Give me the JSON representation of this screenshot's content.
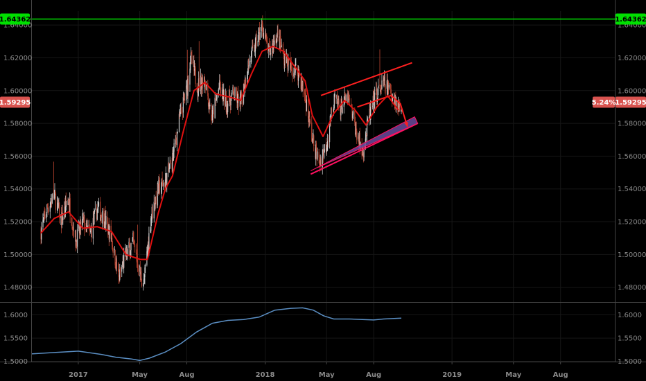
{
  "chart_data": [
    {
      "type": "candlestick",
      "panel": "price",
      "y_ticks": [
        "1.48000",
        "1.50000",
        "1.52000",
        "1.54000",
        "1.56000",
        "1.58000",
        "1.60000",
        "1.62000",
        "1.64000"
      ],
      "ylim": [
        1.471,
        1.6485
      ],
      "xlim": [
        "2016-10-01",
        "2019-11-15"
      ],
      "resistance_level": {
        "value": 1.64362,
        "label": "1.64362",
        "color": "#00e000"
      },
      "last_price": {
        "value": 1.59295,
        "label": "1.59295",
        "change_label": "5.24%",
        "color": "#d9534f"
      },
      "price_path": [
        [
          "2016-10-20",
          1.515
        ],
        [
          "2016-11-01",
          1.528
        ],
        [
          "2016-11-15",
          1.536
        ],
        [
          "2016-11-29",
          1.521
        ],
        [
          "2016-12-13",
          1.534
        ],
        [
          "2016-12-27",
          1.508
        ],
        [
          "2017-01-10",
          1.52
        ],
        [
          "2017-01-24",
          1.512
        ],
        [
          "2017-02-07",
          1.528
        ],
        [
          "2017-02-21",
          1.522
        ],
        [
          "2017-03-07",
          1.51
        ],
        [
          "2017-03-21",
          1.485
        ],
        [
          "2017-04-04",
          1.5
        ],
        [
          "2017-04-18",
          1.508
        ],
        [
          "2017-05-02",
          1.488
        ],
        [
          "2017-05-09",
          1.482
        ],
        [
          "2017-05-23",
          1.523
        ],
        [
          "2017-06-06",
          1.54
        ],
        [
          "2017-06-20",
          1.545
        ],
        [
          "2017-07-04",
          1.558
        ],
        [
          "2017-07-18",
          1.583
        ],
        [
          "2017-08-01",
          1.6
        ],
        [
          "2017-08-08",
          1.62
        ],
        [
          "2017-08-22",
          1.603
        ],
        [
          "2017-09-05",
          1.608
        ],
        [
          "2017-09-19",
          1.583
        ],
        [
          "2017-10-03",
          1.602
        ],
        [
          "2017-10-17",
          1.592
        ],
        [
          "2017-10-31",
          1.598
        ],
        [
          "2017-11-14",
          1.592
        ],
        [
          "2017-11-28",
          1.615
        ],
        [
          "2017-12-12",
          1.627
        ],
        [
          "2017-12-26",
          1.639
        ],
        [
          "2018-01-09",
          1.622
        ],
        [
          "2018-01-23",
          1.634
        ],
        [
          "2018-02-06",
          1.622
        ],
        [
          "2018-02-20",
          1.613
        ],
        [
          "2018-03-06",
          1.612
        ],
        [
          "2018-03-20",
          1.597
        ],
        [
          "2018-04-03",
          1.57
        ],
        [
          "2018-04-17",
          1.556
        ],
        [
          "2018-05-01",
          1.568
        ],
        [
          "2018-05-15",
          1.594
        ],
        [
          "2018-05-29",
          1.59
        ],
        [
          "2018-06-12",
          1.595
        ],
        [
          "2018-06-26",
          1.578
        ],
        [
          "2018-07-10",
          1.562
        ],
        [
          "2018-07-24",
          1.585
        ],
        [
          "2018-08-07",
          1.598
        ],
        [
          "2018-08-21",
          1.604
        ],
        [
          "2018-09-04",
          1.599
        ],
        [
          "2018-09-18",
          1.59
        ],
        [
          "2018-09-24",
          1.593
        ]
      ],
      "moving_average": {
        "color": "#e01010",
        "points": [
          [
            "2016-10-20",
            1.513
          ],
          [
            "2016-11-15",
            1.522
          ],
          [
            "2016-12-13",
            1.526
          ],
          [
            "2017-01-10",
            1.516
          ],
          [
            "2017-02-07",
            1.517
          ],
          [
            "2017-03-07",
            1.514
          ],
          [
            "2017-04-04",
            1.5
          ],
          [
            "2017-05-02",
            1.497
          ],
          [
            "2017-05-16",
            1.497
          ],
          [
            "2017-06-06",
            1.525
          ],
          [
            "2017-06-20",
            1.54
          ],
          [
            "2017-07-04",
            1.548
          ],
          [
            "2017-07-25",
            1.575
          ],
          [
            "2017-08-15",
            1.6
          ],
          [
            "2017-09-05",
            1.605
          ],
          [
            "2017-09-26",
            1.598
          ],
          [
            "2017-10-24",
            1.596
          ],
          [
            "2017-11-14",
            1.594
          ],
          [
            "2017-12-05",
            1.61
          ],
          [
            "2017-12-26",
            1.624
          ],
          [
            "2018-01-16",
            1.627
          ],
          [
            "2018-02-06",
            1.624
          ],
          [
            "2018-02-27",
            1.615
          ],
          [
            "2018-03-20",
            1.606
          ],
          [
            "2018-04-03",
            1.585
          ],
          [
            "2018-04-24",
            1.572
          ],
          [
            "2018-05-15",
            1.586
          ],
          [
            "2018-06-05",
            1.594
          ],
          [
            "2018-06-26",
            1.588
          ],
          [
            "2018-07-17",
            1.579
          ],
          [
            "2018-08-07",
            1.59
          ],
          [
            "2018-08-28",
            1.597
          ],
          [
            "2018-09-18",
            1.588
          ]
        ]
      },
      "annotations": [
        {
          "kind": "trendline",
          "color": "#ff2020",
          "from": [
            "2018-04-20",
            1.597
          ],
          "to": [
            "2018-10-15",
            1.617
          ]
        },
        {
          "kind": "trendline",
          "color": "#ff1060",
          "from": [
            "2018-03-31",
            1.549
          ],
          "to": [
            "2018-10-26",
            1.58
          ]
        },
        {
          "kind": "channel",
          "fill": "#6a4a9c",
          "stroke": "#ff1060",
          "points": [
            [
              "2018-03-31",
              1.551
            ],
            [
              "2018-10-20",
              1.584
            ],
            [
              "2018-10-26",
              1.58
            ],
            [
              "2018-04-06",
              1.552
            ]
          ]
        },
        {
          "kind": "projection",
          "color": "#ff2020",
          "points": [
            [
              "2018-06-30",
              1.59
            ],
            [
              "2018-09-04",
              1.597
            ],
            [
              "2018-09-22",
              1.592
            ],
            [
              "2018-10-06",
              1.578
            ]
          ]
        }
      ]
    },
    {
      "type": "line",
      "panel": "indicator",
      "y_ticks": [
        "1.5000",
        "1.5500",
        "1.6000"
      ],
      "ylim": [
        1.4995,
        1.6245
      ],
      "color": "#5b8fc4",
      "points": [
        [
          "2016-10-01",
          1.516
        ],
        [
          "2016-11-15",
          1.519
        ],
        [
          "2017-01-01",
          1.522
        ],
        [
          "2017-02-15",
          1.515
        ],
        [
          "2017-03-15",
          1.509
        ],
        [
          "2017-04-15",
          1.505
        ],
        [
          "2017-05-01",
          1.502
        ],
        [
          "2017-05-20",
          1.507
        ],
        [
          "2017-06-20",
          1.52
        ],
        [
          "2017-07-20",
          1.538
        ],
        [
          "2017-08-20",
          1.563
        ],
        [
          "2017-09-20",
          1.582
        ],
        [
          "2017-10-20",
          1.588
        ],
        [
          "2017-11-20",
          1.59
        ],
        [
          "2017-12-20",
          1.595
        ],
        [
          "2018-01-20",
          1.61
        ],
        [
          "2018-02-20",
          1.614
        ],
        [
          "2018-03-15",
          1.615
        ],
        [
          "2018-04-05",
          1.61
        ],
        [
          "2018-04-25",
          1.598
        ],
        [
          "2018-05-15",
          1.591
        ],
        [
          "2018-06-15",
          1.591
        ],
        [
          "2018-07-10",
          1.59
        ],
        [
          "2018-08-01",
          1.589
        ],
        [
          "2018-08-20",
          1.591
        ],
        [
          "2018-09-24",
          1.593
        ]
      ]
    }
  ],
  "x_axis": {
    "labels": [
      {
        "text": "2017",
        "date": "2017-01-01"
      },
      {
        "text": "May",
        "date": "2017-05-01"
      },
      {
        "text": "Aug",
        "date": "2017-08-01"
      },
      {
        "text": "2018",
        "date": "2018-01-01"
      },
      {
        "text": "May",
        "date": "2018-05-01"
      },
      {
        "text": "Aug",
        "date": "2018-08-01"
      },
      {
        "text": "2019",
        "date": "2019-01-01"
      },
      {
        "text": "May",
        "date": "2019-05-01"
      },
      {
        "text": "Aug",
        "date": "2019-08-01"
      }
    ]
  },
  "colors": {
    "background": "#000000",
    "grid": "#161616",
    "up_candle": "#cfcfcf",
    "down_candle": "#b8432f",
    "axis_line": "#444444",
    "axis_text": "#8a8a8a"
  }
}
